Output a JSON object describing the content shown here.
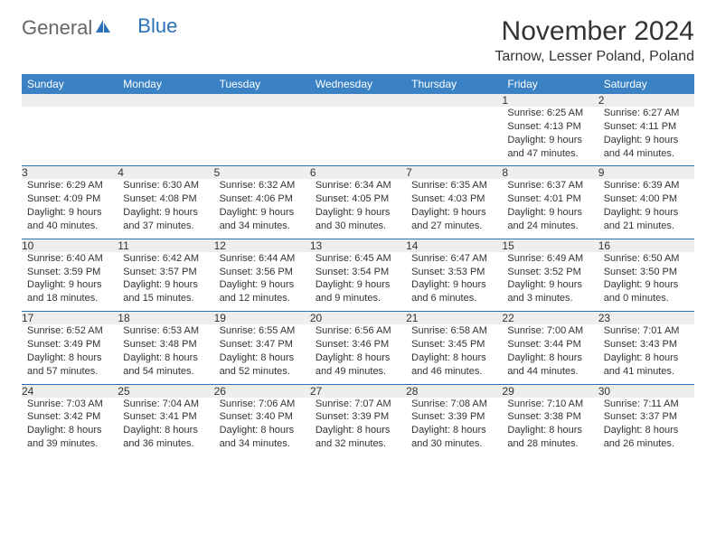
{
  "brand": {
    "part1": "General",
    "part2": "Blue"
  },
  "title": "November 2024",
  "location": "Tarnow, Lesser Poland, Poland",
  "colors": {
    "header_bg": "#3a82c4",
    "header_text": "#ffffff",
    "daynum_bg": "#eeeeee",
    "sep_line": "#2a71b8",
    "body_text": "#333333",
    "brand_blue": "#2a71b8"
  },
  "day_names": [
    "Sunday",
    "Monday",
    "Tuesday",
    "Wednesday",
    "Thursday",
    "Friday",
    "Saturday"
  ],
  "weeks": [
    [
      {
        "n": "",
        "sr": "",
        "ss": "",
        "dl": ""
      },
      {
        "n": "",
        "sr": "",
        "ss": "",
        "dl": ""
      },
      {
        "n": "",
        "sr": "",
        "ss": "",
        "dl": ""
      },
      {
        "n": "",
        "sr": "",
        "ss": "",
        "dl": ""
      },
      {
        "n": "",
        "sr": "",
        "ss": "",
        "dl": ""
      },
      {
        "n": "1",
        "sr": "Sunrise: 6:25 AM",
        "ss": "Sunset: 4:13 PM",
        "dl": "Daylight: 9 hours and 47 minutes."
      },
      {
        "n": "2",
        "sr": "Sunrise: 6:27 AM",
        "ss": "Sunset: 4:11 PM",
        "dl": "Daylight: 9 hours and 44 minutes."
      }
    ],
    [
      {
        "n": "3",
        "sr": "Sunrise: 6:29 AM",
        "ss": "Sunset: 4:09 PM",
        "dl": "Daylight: 9 hours and 40 minutes."
      },
      {
        "n": "4",
        "sr": "Sunrise: 6:30 AM",
        "ss": "Sunset: 4:08 PM",
        "dl": "Daylight: 9 hours and 37 minutes."
      },
      {
        "n": "5",
        "sr": "Sunrise: 6:32 AM",
        "ss": "Sunset: 4:06 PM",
        "dl": "Daylight: 9 hours and 34 minutes."
      },
      {
        "n": "6",
        "sr": "Sunrise: 6:34 AM",
        "ss": "Sunset: 4:05 PM",
        "dl": "Daylight: 9 hours and 30 minutes."
      },
      {
        "n": "7",
        "sr": "Sunrise: 6:35 AM",
        "ss": "Sunset: 4:03 PM",
        "dl": "Daylight: 9 hours and 27 minutes."
      },
      {
        "n": "8",
        "sr": "Sunrise: 6:37 AM",
        "ss": "Sunset: 4:01 PM",
        "dl": "Daylight: 9 hours and 24 minutes."
      },
      {
        "n": "9",
        "sr": "Sunrise: 6:39 AM",
        "ss": "Sunset: 4:00 PM",
        "dl": "Daylight: 9 hours and 21 minutes."
      }
    ],
    [
      {
        "n": "10",
        "sr": "Sunrise: 6:40 AM",
        "ss": "Sunset: 3:59 PM",
        "dl": "Daylight: 9 hours and 18 minutes."
      },
      {
        "n": "11",
        "sr": "Sunrise: 6:42 AM",
        "ss": "Sunset: 3:57 PM",
        "dl": "Daylight: 9 hours and 15 minutes."
      },
      {
        "n": "12",
        "sr": "Sunrise: 6:44 AM",
        "ss": "Sunset: 3:56 PM",
        "dl": "Daylight: 9 hours and 12 minutes."
      },
      {
        "n": "13",
        "sr": "Sunrise: 6:45 AM",
        "ss": "Sunset: 3:54 PM",
        "dl": "Daylight: 9 hours and 9 minutes."
      },
      {
        "n": "14",
        "sr": "Sunrise: 6:47 AM",
        "ss": "Sunset: 3:53 PM",
        "dl": "Daylight: 9 hours and 6 minutes."
      },
      {
        "n": "15",
        "sr": "Sunrise: 6:49 AM",
        "ss": "Sunset: 3:52 PM",
        "dl": "Daylight: 9 hours and 3 minutes."
      },
      {
        "n": "16",
        "sr": "Sunrise: 6:50 AM",
        "ss": "Sunset: 3:50 PM",
        "dl": "Daylight: 9 hours and 0 minutes."
      }
    ],
    [
      {
        "n": "17",
        "sr": "Sunrise: 6:52 AM",
        "ss": "Sunset: 3:49 PM",
        "dl": "Daylight: 8 hours and 57 minutes."
      },
      {
        "n": "18",
        "sr": "Sunrise: 6:53 AM",
        "ss": "Sunset: 3:48 PM",
        "dl": "Daylight: 8 hours and 54 minutes."
      },
      {
        "n": "19",
        "sr": "Sunrise: 6:55 AM",
        "ss": "Sunset: 3:47 PM",
        "dl": "Daylight: 8 hours and 52 minutes."
      },
      {
        "n": "20",
        "sr": "Sunrise: 6:56 AM",
        "ss": "Sunset: 3:46 PM",
        "dl": "Daylight: 8 hours and 49 minutes."
      },
      {
        "n": "21",
        "sr": "Sunrise: 6:58 AM",
        "ss": "Sunset: 3:45 PM",
        "dl": "Daylight: 8 hours and 46 minutes."
      },
      {
        "n": "22",
        "sr": "Sunrise: 7:00 AM",
        "ss": "Sunset: 3:44 PM",
        "dl": "Daylight: 8 hours and 44 minutes."
      },
      {
        "n": "23",
        "sr": "Sunrise: 7:01 AM",
        "ss": "Sunset: 3:43 PM",
        "dl": "Daylight: 8 hours and 41 minutes."
      }
    ],
    [
      {
        "n": "24",
        "sr": "Sunrise: 7:03 AM",
        "ss": "Sunset: 3:42 PM",
        "dl": "Daylight: 8 hours and 39 minutes."
      },
      {
        "n": "25",
        "sr": "Sunrise: 7:04 AM",
        "ss": "Sunset: 3:41 PM",
        "dl": "Daylight: 8 hours and 36 minutes."
      },
      {
        "n": "26",
        "sr": "Sunrise: 7:06 AM",
        "ss": "Sunset: 3:40 PM",
        "dl": "Daylight: 8 hours and 34 minutes."
      },
      {
        "n": "27",
        "sr": "Sunrise: 7:07 AM",
        "ss": "Sunset: 3:39 PM",
        "dl": "Daylight: 8 hours and 32 minutes."
      },
      {
        "n": "28",
        "sr": "Sunrise: 7:08 AM",
        "ss": "Sunset: 3:39 PM",
        "dl": "Daylight: 8 hours and 30 minutes."
      },
      {
        "n": "29",
        "sr": "Sunrise: 7:10 AM",
        "ss": "Sunset: 3:38 PM",
        "dl": "Daylight: 8 hours and 28 minutes."
      },
      {
        "n": "30",
        "sr": "Sunrise: 7:11 AM",
        "ss": "Sunset: 3:37 PM",
        "dl": "Daylight: 8 hours and 26 minutes."
      }
    ]
  ]
}
